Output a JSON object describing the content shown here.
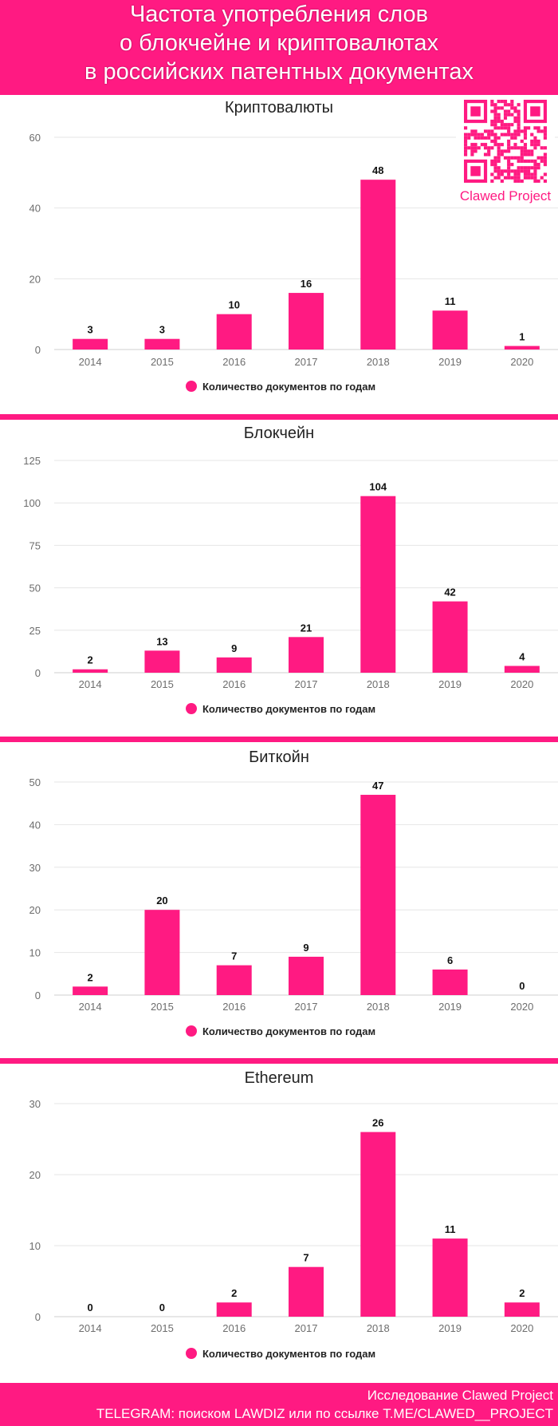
{
  "header": {
    "lines": [
      "Частота употребления слов",
      "о блокчейне и криптовалютах",
      "в российских патентных документах"
    ]
  },
  "brand": {
    "label": "Clawed Project"
  },
  "colors": {
    "accent": "#ff1a82",
    "grid": "#e6e6e6",
    "axis": "#6d6d6d"
  },
  "chart_data": [
    {
      "type": "bar",
      "title": "Криптовалюты",
      "categories": [
        "2014",
        "2015",
        "2016",
        "2017",
        "2018",
        "2019",
        "2020"
      ],
      "values": [
        3,
        3,
        10,
        16,
        48,
        11,
        1
      ],
      "yticks": [
        0,
        20,
        40,
        60
      ],
      "ylim": [
        0,
        60
      ],
      "legend": "Количество документов по годам",
      "legend_position": "bottom"
    },
    {
      "type": "bar",
      "title": "Блокчейн",
      "categories": [
        "2014",
        "2015",
        "2016",
        "2017",
        "2018",
        "2019",
        "2020"
      ],
      "values": [
        2,
        13,
        9,
        21,
        104,
        42,
        4
      ],
      "yticks": [
        0,
        25,
        50,
        75,
        100,
        125
      ],
      "ylim": [
        0,
        125
      ],
      "legend": "Количество документов по годам",
      "legend_position": "bottom"
    },
    {
      "type": "bar",
      "title": "Биткойн",
      "categories": [
        "2014",
        "2015",
        "2016",
        "2017",
        "2018",
        "2019",
        "2020"
      ],
      "values": [
        2,
        20,
        7,
        9,
        47,
        6,
        0
      ],
      "yticks": [
        0,
        10,
        20,
        30,
        40,
        50
      ],
      "ylim": [
        0,
        50
      ],
      "legend": "Количество документов по годам",
      "legend_position": "bottom"
    },
    {
      "type": "bar",
      "title": "Ethereum",
      "categories": [
        "2014",
        "2015",
        "2016",
        "2017",
        "2018",
        "2019",
        "2020"
      ],
      "values": [
        0,
        0,
        2,
        7,
        26,
        11,
        2
      ],
      "yticks": [
        0,
        10,
        20,
        30
      ],
      "ylim": [
        0,
        30
      ],
      "legend": "Количество документов по годам",
      "legend_position": "bottom"
    }
  ],
  "footer": {
    "line1": "Исследование Clawed Project",
    "line2": "TELEGRAM: поиском LAWDIZ или по ссылке T.ME/CLAWED__PROJECT"
  }
}
